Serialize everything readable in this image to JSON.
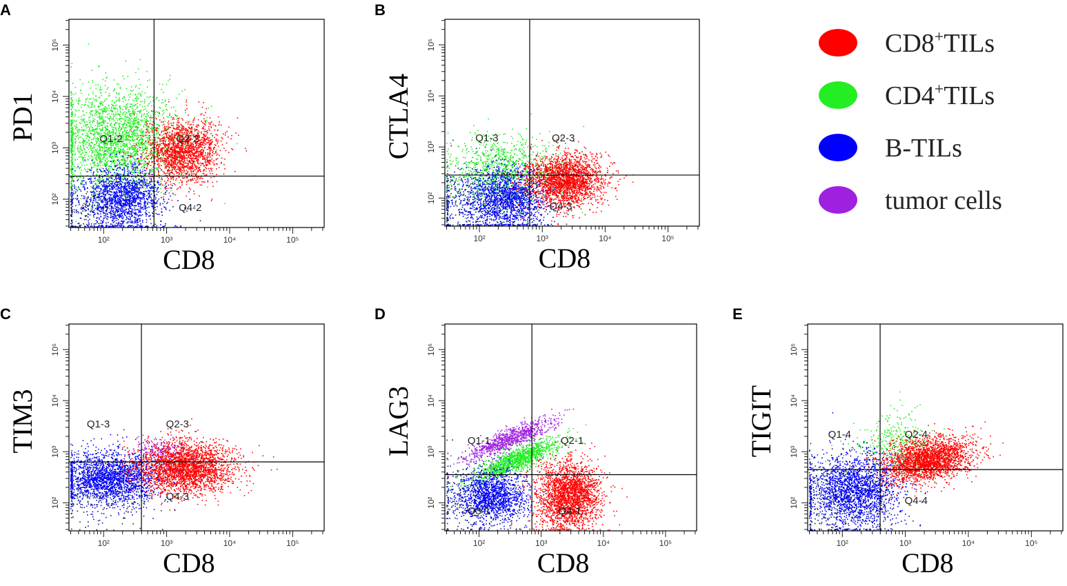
{
  "colors": {
    "CD8": "#ff0000",
    "CD4": "#22ee22",
    "B": "#0000ff",
    "tumor": "#a020e0",
    "dark_blue": "#0a1a6e",
    "frame": "#000000"
  },
  "legend": [
    {
      "key": "CD8",
      "pre": "CD8",
      "sup": "+",
      "post": "TILs"
    },
    {
      "key": "CD4",
      "pre": "CD4",
      "sup": "+",
      "post": "TILs"
    },
    {
      "key": "B",
      "pre": "B-TILs",
      "sup": "",
      "post": ""
    },
    {
      "key": "tumor",
      "pre": "tumor cells",
      "sup": "",
      "post": ""
    }
  ],
  "chart_data": [
    {
      "panel": "A",
      "type": "scatter",
      "xlabel": "CD8",
      "ylabel": "PD1",
      "xlim_log10": [
        1.45,
        5.5
      ],
      "ylim_log10": [
        1.45,
        5.5
      ],
      "x_ticks": [
        "10²",
        "10³",
        "10⁴",
        "10⁵"
      ],
      "y_ticks": [
        "10²",
        "10³",
        "10⁴",
        "10⁵"
      ],
      "gate_x_log10": 2.8,
      "gate_y_log10": 2.45,
      "quadrant_labels": [
        "Q1-2",
        "Q2-2",
        "Q4-2"
      ],
      "populations": [
        {
          "key": "dark_blue",
          "n": 400,
          "cx": 2.0,
          "cy": 1.85,
          "sx": 0.55,
          "sy": 0.35
        },
        {
          "key": "CD4",
          "n": 2600,
          "cx": 2.2,
          "cy": 3.15,
          "sx": 0.5,
          "sy": 0.5
        },
        {
          "key": "B",
          "n": 1500,
          "cx": 2.3,
          "cy": 2.05,
          "sx": 0.32,
          "sy": 0.3
        },
        {
          "key": "CD8",
          "n": 1800,
          "cx": 3.25,
          "cy": 2.95,
          "sx": 0.3,
          "sy": 0.3
        }
      ]
    },
    {
      "panel": "B",
      "type": "scatter",
      "xlabel": "CD8",
      "ylabel": "CTLA4",
      "xlim_log10": [
        1.45,
        5.5
      ],
      "ylim_log10": [
        1.45,
        5.5
      ],
      "x_ticks": [
        "10²",
        "10³",
        "10⁴",
        "10⁵"
      ],
      "y_ticks": [
        "10²",
        "10³",
        "10⁴",
        "10⁵"
      ],
      "gate_x_log10": 2.8,
      "gate_y_log10": 2.45,
      "quadrant_labels": [
        "Q1-3",
        "Q2-3",
        "Q4-3"
      ],
      "populations": [
        {
          "key": "dark_blue",
          "n": 500,
          "cx": 2.0,
          "cy": 1.9,
          "sx": 0.5,
          "sy": 0.4
        },
        {
          "key": "CD4",
          "n": 1100,
          "cx": 2.4,
          "cy": 2.55,
          "sx": 0.45,
          "sy": 0.35
        },
        {
          "key": "B",
          "n": 1600,
          "cx": 2.4,
          "cy": 2.0,
          "sx": 0.35,
          "sy": 0.3
        },
        {
          "key": "CD8",
          "n": 2200,
          "cx": 3.35,
          "cy": 2.35,
          "sx": 0.32,
          "sy": 0.25
        }
      ]
    },
    {
      "panel": "C",
      "type": "scatter",
      "xlabel": "CD8",
      "ylabel": "TIM3",
      "xlim_log10": [
        1.45,
        5.5
      ],
      "ylim_log10": [
        1.45,
        5.5
      ],
      "x_ticks": [
        "10²",
        "10³",
        "10⁴",
        "10⁵"
      ],
      "y_ticks": [
        "10²",
        "10³",
        "10⁴",
        "10⁵"
      ],
      "gate_x_log10": 2.6,
      "gate_y_log10": 2.8,
      "quadrant_labels": [
        "Q1-3",
        "Q2-3",
        "Q4-3"
      ],
      "populations": [
        {
          "key": "dark_blue",
          "n": 400,
          "cx": 2.0,
          "cy": 2.3,
          "sx": 0.45,
          "sy": 0.35
        },
        {
          "key": "tumor",
          "n": 150,
          "cx": 2.9,
          "cy": 3.05,
          "sx": 0.2,
          "sy": 0.12
        },
        {
          "key": "B",
          "n": 1900,
          "cx": 2.1,
          "cy": 2.5,
          "sx": 0.4,
          "sy": 0.25
        },
        {
          "key": "CD8",
          "n": 2600,
          "cx": 3.3,
          "cy": 2.7,
          "sx": 0.38,
          "sy": 0.25
        }
      ]
    },
    {
      "panel": "D",
      "type": "scatter",
      "xlabel": "CD8",
      "ylabel": "LAG3",
      "xlim_log10": [
        1.45,
        5.5
      ],
      "ylim_log10": [
        1.45,
        5.5
      ],
      "x_ticks": [
        "10²",
        "10³",
        "10⁴",
        "10⁵"
      ],
      "y_ticks": [
        "10²",
        "10³",
        "10⁴",
        "10⁵"
      ],
      "gate_x_log10": 2.85,
      "gate_y_log10": 2.55,
      "quadrant_labels": [
        "Q1-1",
        "Q2-1",
        "Q3-1",
        "Q4-1"
      ],
      "populations": [
        {
          "key": "dark_blue",
          "n": 400,
          "cx": 2.0,
          "cy": 2.1,
          "sx": 0.45,
          "sy": 0.4
        },
        {
          "key": "tumor",
          "n": 900,
          "cx": 2.5,
          "cy": 3.25,
          "sx": 0.35,
          "sy": 0.2,
          "rho": 0.85
        },
        {
          "key": "CD4",
          "n": 1300,
          "cx": 2.6,
          "cy": 2.85,
          "sx": 0.35,
          "sy": 0.2,
          "rho": 0.85
        },
        {
          "key": "B",
          "n": 1300,
          "cx": 2.2,
          "cy": 2.15,
          "sx": 0.28,
          "sy": 0.25
        },
        {
          "key": "CD8",
          "n": 2300,
          "cx": 3.45,
          "cy": 2.15,
          "sx": 0.25,
          "sy": 0.32
        }
      ]
    },
    {
      "panel": "E",
      "type": "scatter",
      "xlabel": "CD8",
      "ylabel": "TIGIT",
      "xlim_log10": [
        1.45,
        5.5
      ],
      "ylim_log10": [
        1.45,
        5.5
      ],
      "x_ticks": [
        "10²",
        "10³",
        "10⁴",
        "10⁵"
      ],
      "y_ticks": [
        "10²",
        "10³",
        "10⁴",
        "10⁵"
      ],
      "gate_x_log10": 2.6,
      "gate_y_log10": 2.65,
      "quadrant_labels": [
        "Q1-4",
        "Q2-4",
        "Q4-4"
      ],
      "populations": [
        {
          "key": "dark_blue",
          "n": 500,
          "cx": 2.0,
          "cy": 2.1,
          "sx": 0.45,
          "sy": 0.45
        },
        {
          "key": "CD4",
          "n": 400,
          "cx": 2.85,
          "cy": 3.1,
          "sx": 0.3,
          "sy": 0.3
        },
        {
          "key": "B",
          "n": 1800,
          "cx": 2.2,
          "cy": 2.25,
          "sx": 0.35,
          "sy": 0.35
        },
        {
          "key": "CD8",
          "n": 2400,
          "cx": 3.35,
          "cy": 2.85,
          "sx": 0.35,
          "sy": 0.22,
          "rho": 0.3
        }
      ]
    }
  ]
}
